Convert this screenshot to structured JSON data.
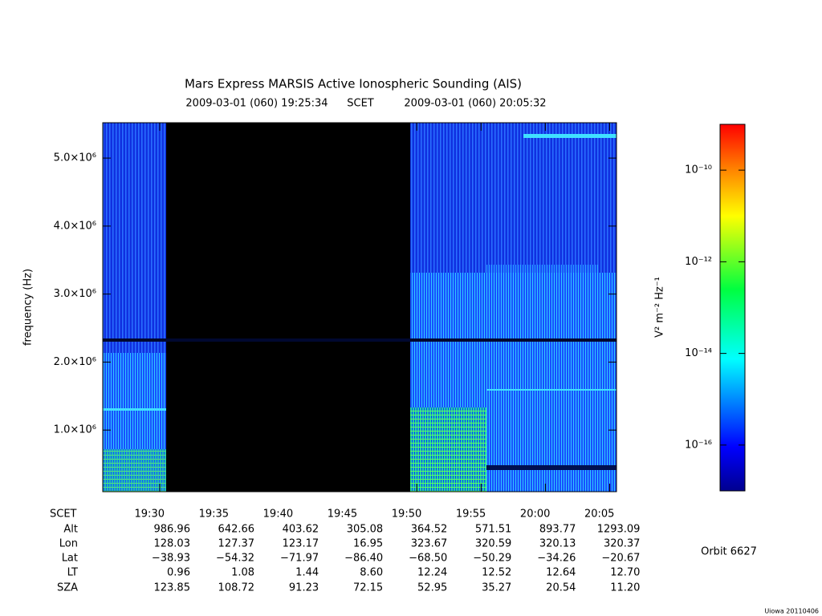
{
  "chart_data": {
    "type": "spectrogram",
    "title": "Mars Express MARSIS Active Ionospheric Sounding (AIS)",
    "start_time": "2009-03-01 (060) 19:25:34",
    "time_system": "SCET",
    "end_time": "2009-03-01 (060) 20:05:32",
    "ylabel": "frequency (Hz)",
    "xlim": [
      25.5667,
      65.5333
    ],
    "xticks": [
      {
        "value": 30,
        "label": "19:30"
      },
      {
        "value": 35,
        "label": "19:35"
      },
      {
        "value": 40,
        "label": "19:40"
      },
      {
        "value": 45,
        "label": "19:45"
      },
      {
        "value": 50,
        "label": "19:50"
      },
      {
        "value": 55,
        "label": "19:55"
      },
      {
        "value": 60,
        "label": "20:00"
      },
      {
        "value": 65,
        "label": "20:05"
      }
    ],
    "ylim": [
      94000,
      5520000
    ],
    "yticks": [
      {
        "value": 1000000,
        "label": "1.0×10⁶"
      },
      {
        "value": 2000000,
        "label": "2.0×10⁶"
      },
      {
        "value": 3000000,
        "label": "3.0×10⁶"
      },
      {
        "value": 4000000,
        "label": "4.0×10⁶"
      },
      {
        "value": 5000000,
        "label": "5.0×10⁶"
      }
    ],
    "colorbar": {
      "label": "V² m⁻² Hz⁻¹",
      "log": true,
      "lim": [
        1e-17,
        1e-09
      ],
      "ticks": [
        {
          "value": 1e-10,
          "label": "10⁻¹⁰"
        },
        {
          "value": 1e-12,
          "label": "10⁻¹²"
        },
        {
          "value": 1e-14,
          "label": "10⁻¹⁴"
        },
        {
          "value": 1e-16,
          "label": "10⁻¹⁶"
        }
      ]
    },
    "ephemeris": {
      "row_labels": [
        "SCET",
        "Alt",
        "Lon",
        "Lat",
        "LT",
        "SZA"
      ],
      "rows": [
        [
          986.96,
          642.66,
          403.62,
          305.08,
          364.52,
          571.51,
          893.77,
          1293.09
        ],
        [
          128.03,
          127.37,
          123.17,
          16.95,
          323.67,
          320.59,
          320.13,
          320.37
        ],
        [
          -38.93,
          -54.32,
          -71.97,
          -86.4,
          -68.5,
          -50.29,
          -34.26,
          -20.67
        ],
        [
          0.96,
          1.08,
          1.44,
          8.6,
          12.24,
          12.52,
          12.64,
          12.7
        ],
        [
          123.85,
          108.72,
          91.23,
          72.15,
          52.95,
          35.27,
          20.54,
          11.2
        ]
      ],
      "row_value_labels": [
        [
          "986.96",
          "642.66",
          "403.62",
          "305.08",
          "364.52",
          "571.51",
          "893.77",
          "1293.09"
        ],
        [
          "128.03",
          "127.37",
          "123.17",
          "16.95",
          "323.67",
          "320.59",
          "320.13",
          "320.37"
        ],
        [
          "−38.93",
          "−54.32",
          "−71.97",
          "−86.40",
          "−68.50",
          "−50.29",
          "−34.26",
          "−20.67"
        ],
        [
          "0.96",
          "1.08",
          "1.44",
          "8.60",
          "12.24",
          "12.52",
          "12.64",
          "12.70"
        ],
        [
          "123.85",
          "108.72",
          "91.23",
          "72.15",
          "52.95",
          "35.27",
          "20.54",
          "11.20"
        ]
      ]
    },
    "orbit": "Orbit 6627",
    "credit": "Uiowa 20110406"
  }
}
